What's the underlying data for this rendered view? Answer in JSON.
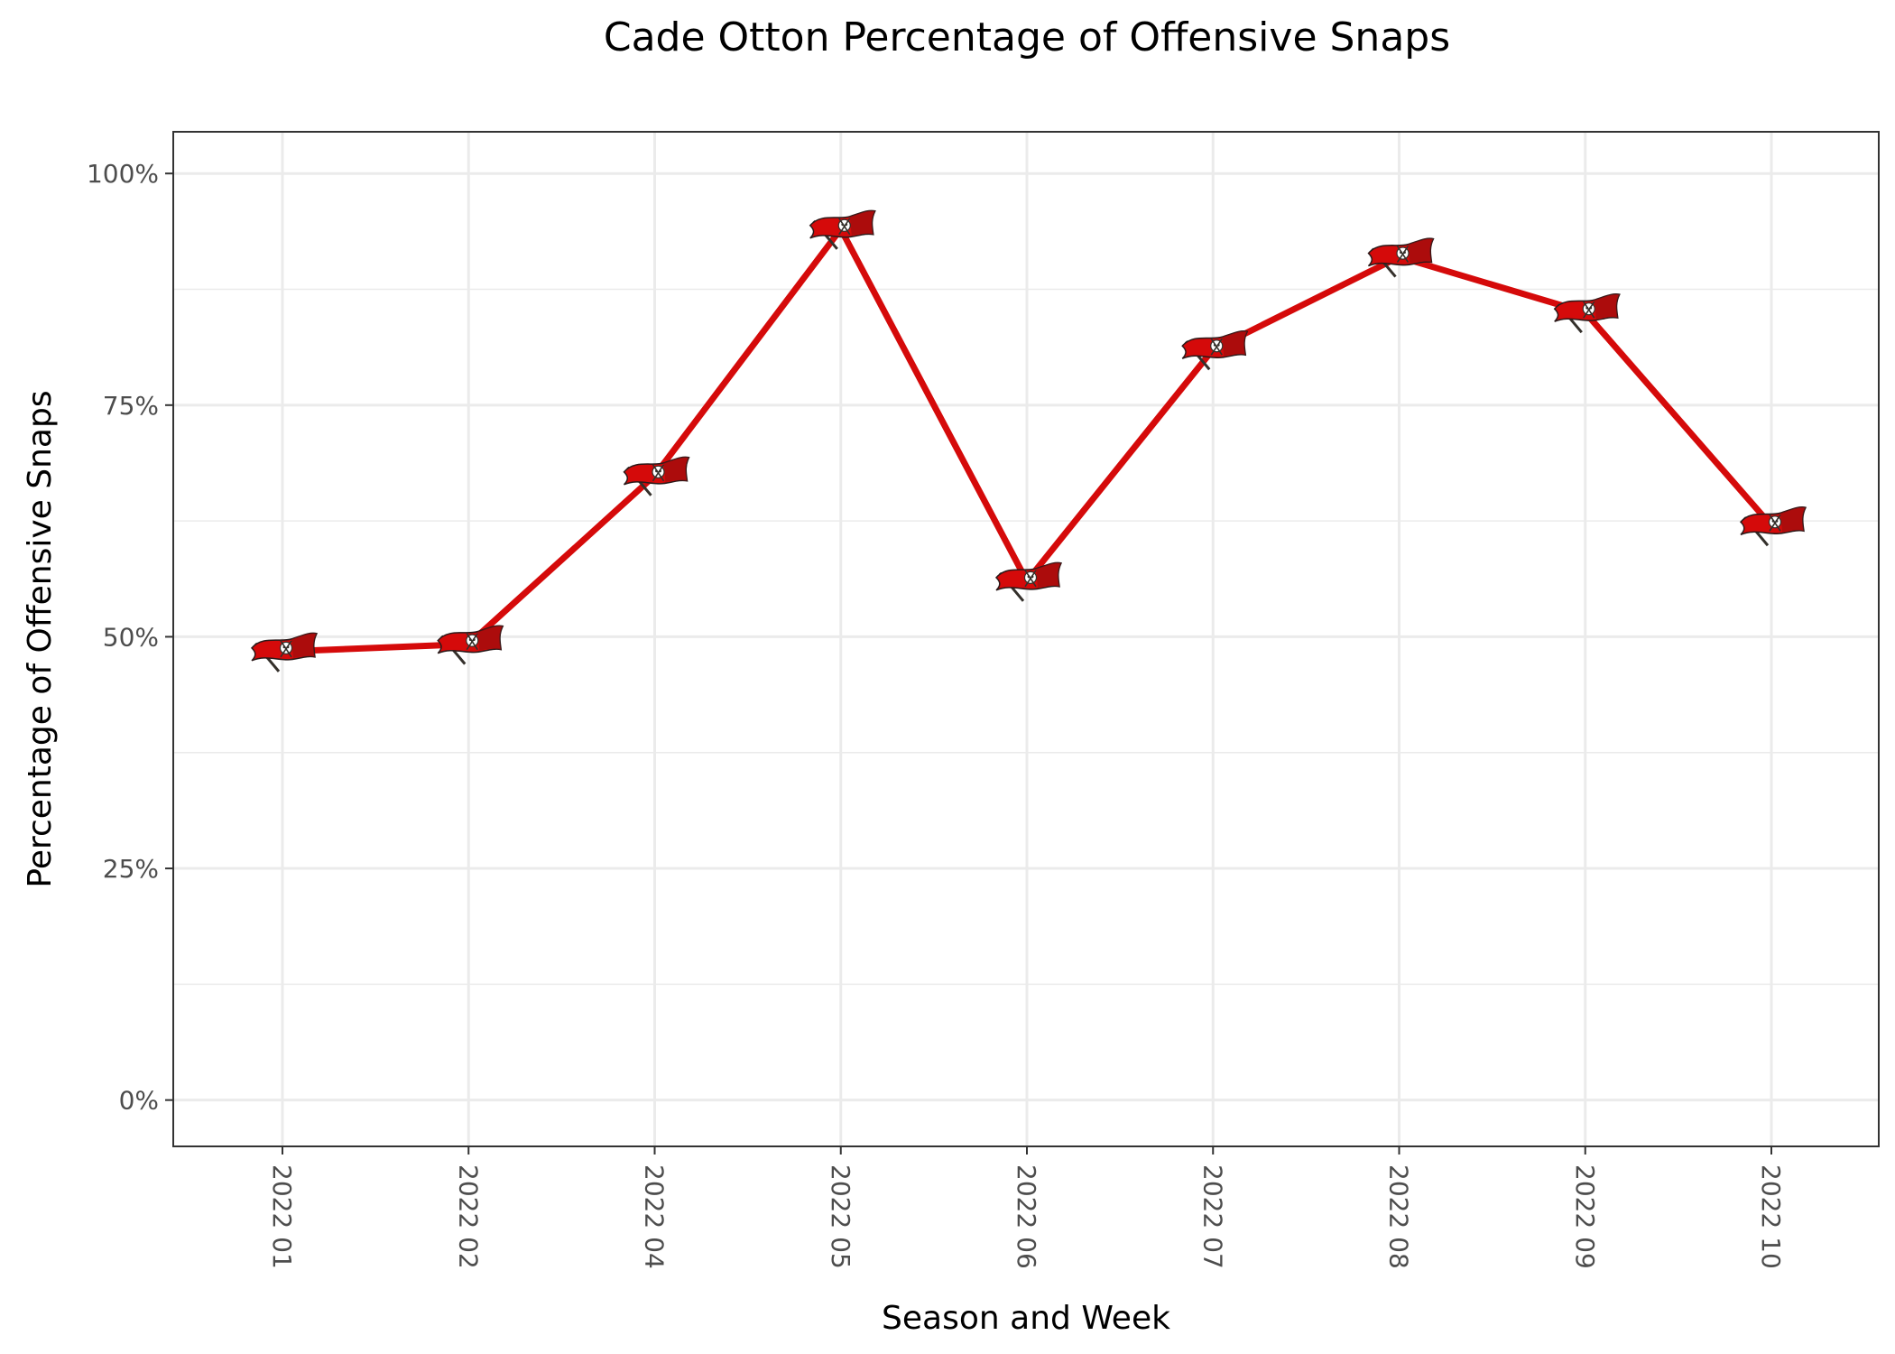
{
  "chart_data": {
    "type": "line",
    "title": "Cade Otton Percentage of Offensive Snaps",
    "xlabel": "Season and Week",
    "ylabel": "Percentage of Offensive Snaps",
    "categories": [
      "2022 01",
      "2022 02",
      "2022 04",
      "2022 05",
      "2022 06",
      "2022 07",
      "2022 08",
      "2022 09",
      "2022 10"
    ],
    "values": [
      48.4,
      49.2,
      67.4,
      94.0,
      56.0,
      81.0,
      91.0,
      85.0,
      62.0
    ],
    "ylim": [
      -5,
      104.5
    ],
    "yticks": [
      0,
      25,
      50,
      75,
      100
    ],
    "ytick_labels": [
      "0%",
      "25%",
      "50%",
      "75%",
      "100%"
    ],
    "grid": true,
    "legend": "none",
    "line_color": "#d50a0a",
    "marker_icon": "buccaneers-flag-icon",
    "marker_colors": {
      "flag": "#d50a0a",
      "flag_dark": "#8a0e0e",
      "skull": "#ffffff",
      "pole": "#34302b"
    }
  }
}
